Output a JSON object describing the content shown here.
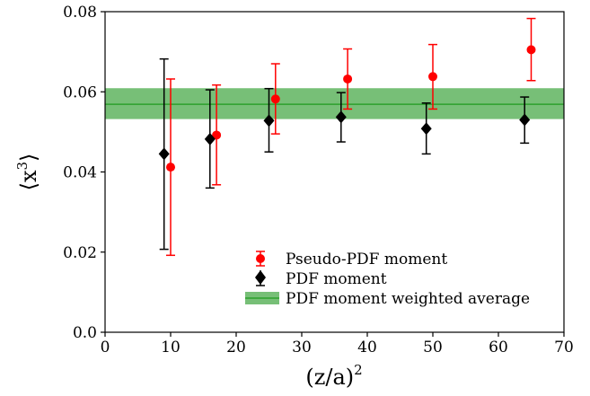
{
  "chart_data": {
    "type": "scatter",
    "xlabel_base": "(z/a)",
    "xlabel_sup": "2",
    "ylabel_base": "⟨x",
    "ylabel_sup": "3",
    "ylabel_close": "⟩",
    "xlim": [
      0,
      70
    ],
    "ylim": [
      0.0,
      0.08
    ],
    "xticks": [
      0,
      10,
      20,
      30,
      40,
      50,
      60,
      70
    ],
    "xtick_labels": [
      "0",
      "10",
      "20",
      "30",
      "40",
      "50",
      "60",
      "70"
    ],
    "yticks": [
      0.0,
      0.02,
      0.04,
      0.06,
      0.08
    ],
    "ytick_labels": [
      "0.0",
      "0.02",
      "0.04",
      "0.06",
      "0.08"
    ],
    "grid": false,
    "legend_position": "bottom-right",
    "series": [
      {
        "name": "Pseudo-PDF moment",
        "marker": "circle",
        "color": "#ff0000",
        "x": [
          10,
          17,
          26,
          37,
          50,
          65
        ],
        "y": [
          0.0412,
          0.0492,
          0.0582,
          0.0632,
          0.0638,
          0.0705
        ],
        "yerr_low": [
          0.0192,
          0.0368,
          0.0495,
          0.0557,
          0.0557,
          0.0628
        ],
        "yerr_high": [
          0.0632,
          0.0617,
          0.067,
          0.0707,
          0.0718,
          0.0783
        ]
      },
      {
        "name": "PDF moment",
        "marker": "diamond",
        "color": "#000000",
        "x": [
          9,
          16,
          25,
          36,
          49,
          64
        ],
        "y": [
          0.0445,
          0.0482,
          0.0528,
          0.0537,
          0.0508,
          0.053
        ],
        "yerr_low": [
          0.0207,
          0.036,
          0.045,
          0.0475,
          0.0445,
          0.0472
        ],
        "yerr_high": [
          0.0682,
          0.0605,
          0.0608,
          0.0598,
          0.0572,
          0.0587
        ]
      }
    ],
    "band": {
      "name": "PDF moment weighted average",
      "center": 0.0569,
      "low": 0.0532,
      "high": 0.0609,
      "fill_color": "#77bf77",
      "line_color": "#2ca02c"
    }
  }
}
